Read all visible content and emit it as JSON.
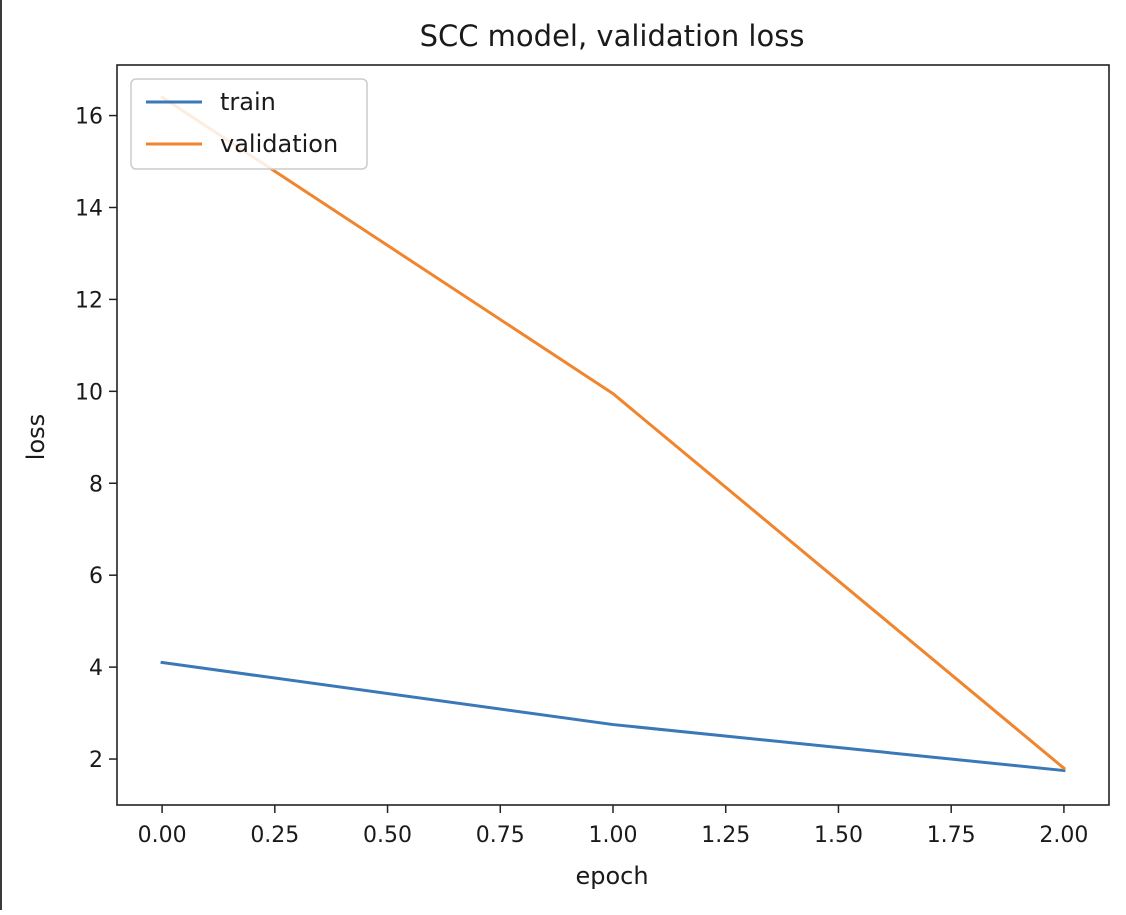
{
  "chart_data": {
    "type": "line",
    "title": "SCC model, validation loss",
    "xlabel": "epoch",
    "ylabel": "loss",
    "x": [
      0,
      1,
      2
    ],
    "series": [
      {
        "name": "train",
        "values": [
          4.1,
          2.75,
          1.75
        ],
        "color": "#3a78b8"
      },
      {
        "name": "validation",
        "values": [
          16.4,
          9.95,
          1.8
        ],
        "color": "#f0852d"
      }
    ],
    "xlim": [
      -0.1,
      2.1
    ],
    "ylim": [
      1.0,
      17.1
    ],
    "xticks": [
      "0.00",
      "0.25",
      "0.50",
      "0.75",
      "1.00",
      "1.25",
      "1.50",
      "1.75",
      "2.00"
    ],
    "xtick_values": [
      0,
      0.25,
      0.5,
      0.75,
      1.0,
      1.25,
      1.5,
      1.75,
      2.0
    ],
    "yticks": [
      "2",
      "4",
      "6",
      "8",
      "10",
      "12",
      "14",
      "16"
    ],
    "ytick_values": [
      2,
      4,
      6,
      8,
      10,
      12,
      14,
      16
    ],
    "grid": false,
    "legend_position": "upper left"
  }
}
